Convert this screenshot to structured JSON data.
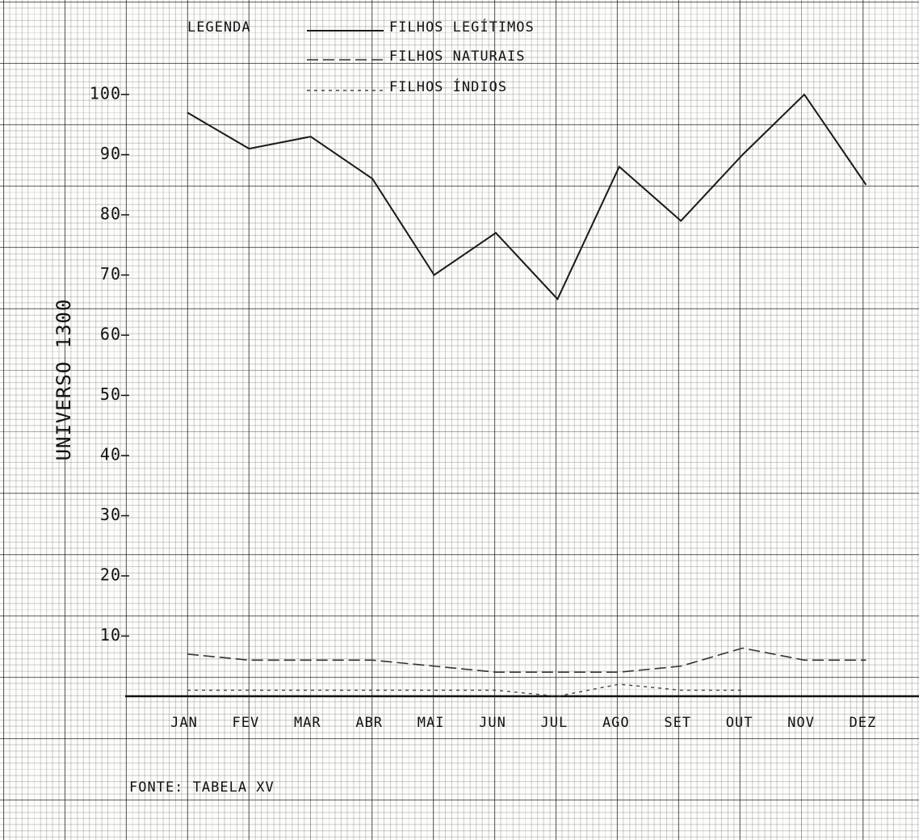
{
  "chart_data": {
    "type": "line",
    "legend_title": "LEGENDA",
    "y_label": "UNIVERSO 1300",
    "source": "FONTE: TABELA XV",
    "categories": [
      "JAN",
      "FEV",
      "MAR",
      "ABR",
      "MAI",
      "JUN",
      "JUL",
      "AGO",
      "SET",
      "OUT",
      "NOV",
      "DEZ"
    ],
    "series": [
      {
        "name": "FILHOS LEGÍTIMOS",
        "color": "#1a1a1a",
        "values": [
          97,
          91,
          93,
          86,
          70,
          77,
          66,
          88,
          79,
          90,
          100,
          85
        ]
      },
      {
        "name": "FILHOS NATURAIS",
        "color": "#333333",
        "values": [
          7,
          6,
          6,
          6,
          5,
          4,
          4,
          4,
          5,
          8,
          6,
          6
        ]
      },
      {
        "name": "FILHOS ÍNDIOS",
        "color": "#444444",
        "values": [
          1,
          1,
          1,
          1,
          1,
          1,
          0,
          2,
          1,
          1,
          null,
          null
        ]
      }
    ],
    "ylim": [
      0,
      100
    ],
    "yticks": [
      10,
      20,
      30,
      40,
      50,
      60,
      70,
      80,
      90,
      100
    ]
  }
}
